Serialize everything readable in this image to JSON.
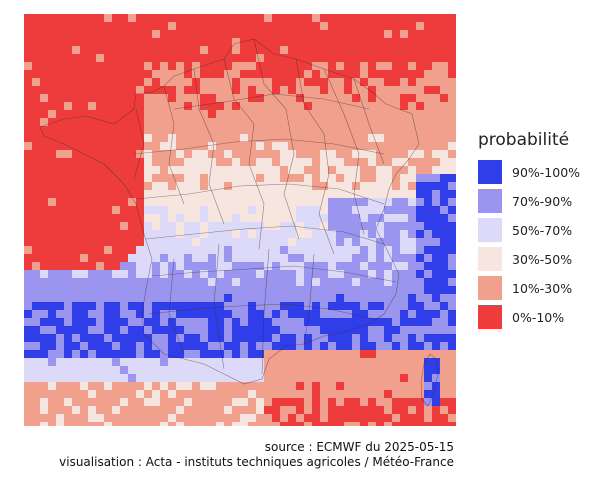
{
  "map": {
    "description": "Gridded probability map over France",
    "legend_title": "probabilité",
    "classes": [
      {
        "label": "90%-100%",
        "color": "#2f3ee8"
      },
      {
        "label": "70%-90%",
        "color": "#9a95ee"
      },
      {
        "label": "50%-70%",
        "color": "#dcdaf8"
      },
      {
        "label": "30%-50%",
        "color": "#f7e6df"
      },
      {
        "label": "10%-30%",
        "color": "#f0a08c"
      },
      {
        "label": "0%-10%",
        "color": "#ee3b3b"
      }
    ]
  },
  "credits": {
    "source": "source : ECMWF du 2025-05-15",
    "visualisation": "visualisation : Acta - instituts techniques agricoles / Météo-France"
  }
}
